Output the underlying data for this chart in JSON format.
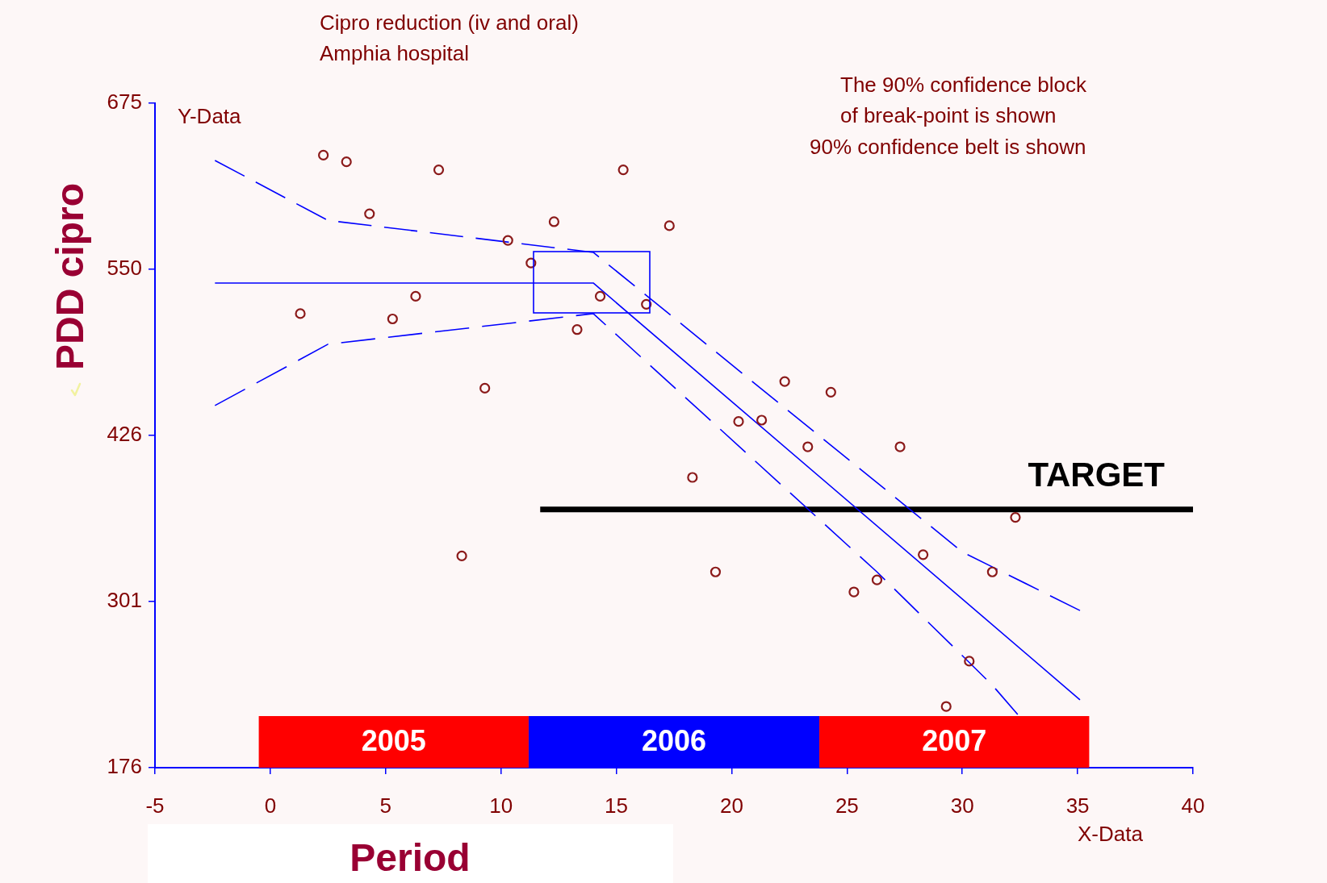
{
  "chart_data": {
    "type": "scatter",
    "title": "Cipro reduction (iv and oral)",
    "subtitle": "Amphia hospital",
    "xlabel": "Period",
    "ylabel": "PDD cipro",
    "annotations": [
      "The 90% confidence block\nof break-point is shown",
      "90% confidence belt is shown",
      "Y-Data",
      "X-Data"
    ],
    "series": [
      {
        "type": "scatter",
        "color": "#8b1a1a",
        "marker": "circle",
        "x": [
          1.3,
          2.3,
          3.3,
          4.3,
          5.3,
          6.3,
          7.3,
          8.3,
          9.3,
          10.3,
          11.3,
          12.3,
          13.3,
          14.3,
          15.3,
          16.3,
          17.3,
          18.3,
          19.3,
          20.3,
          21.3,
          22.3,
          23.3,
          24.3,
          25.3,
          26.3,
          27.3,
          28.3,
          29.3,
          30.3,
          31.3,
          32.3
        ],
        "values": [
          517,
          636,
          631,
          592,
          513,
          530,
          625,
          335,
          461,
          572,
          555,
          586,
          505,
          530,
          625,
          524,
          583,
          394,
          323,
          436,
          437,
          466,
          417,
          458,
          308,
          317,
          417,
          336,
          222,
          256,
          323,
          364
        ]
      },
      {
        "type": "line",
        "color": "#0000ff",
        "line_style": "solid",
        "x": [
          -2.4,
          14,
          35.1
        ],
        "values": [
          540,
          540,
          227
        ]
      },
      {
        "type": "line",
        "color": "#0000ff",
        "line_style": "dashed",
        "x": [
          -2.4,
          2.5,
          14,
          30,
          35.1
        ],
        "values": [
          632,
          587,
          563,
          338,
          294
        ]
      },
      {
        "type": "line",
        "color": "#0000ff",
        "line_style": "dashed",
        "x": [
          -2.4,
          2.5,
          14,
          26.3,
          31.3,
          32.4
        ],
        "values": [
          448,
          494,
          517,
          323,
          238,
          216
        ]
      },
      {
        "name": "TARGET",
        "type": "line",
        "color": "#000000",
        "line_style": "solid",
        "x": [
          11.7,
          40
        ],
        "values": [
          370,
          370
        ]
      }
    ],
    "bands": [
      {
        "axis": "x",
        "from": -0.5,
        "to": 11.2,
        "label": "2005",
        "color": "#ff0000"
      },
      {
        "axis": "x",
        "from": 11.2,
        "to": 23.8,
        "label": "2006",
        "color": "#0000ff"
      },
      {
        "axis": "x",
        "from": 23.8,
        "to": 35.5,
        "label": "2007",
        "color": "#ff0000"
      }
    ],
    "xlim": [
      -5,
      40
    ],
    "xticks": [
      -5,
      0,
      5,
      10,
      15,
      20,
      25,
      30,
      35,
      40
    ],
    "ylim": [
      176,
      675
    ],
    "yticks": [
      176,
      {
        "value": 300.75,
        "label": "301"
      },
      {
        "value": 425.5,
        "label": "426"
      },
      {
        "value": 550.25,
        "label": "550"
      },
      675
    ],
    "grid": false,
    "legend": false
  }
}
